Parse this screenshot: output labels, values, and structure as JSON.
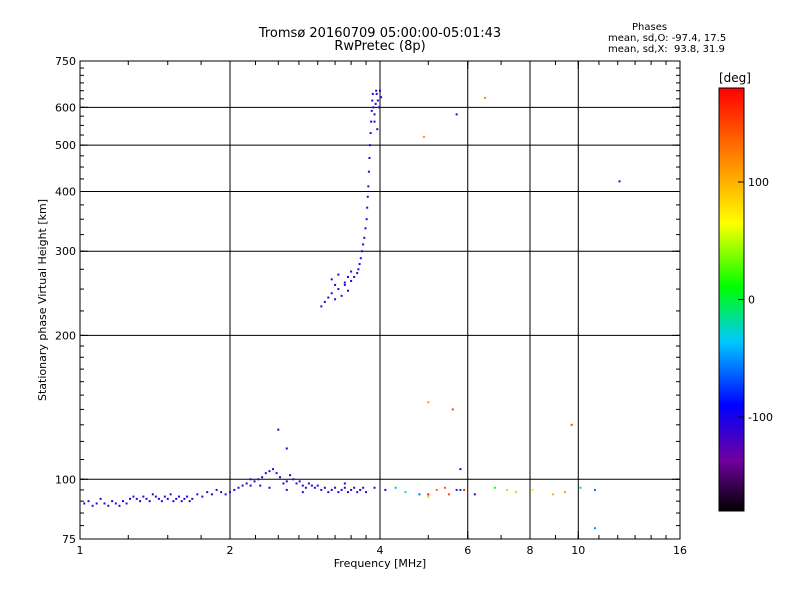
{
  "title": {
    "line1": "Tromsø 20160709 05:00:00-05:01:43",
    "line2": "RwPretec (8p)"
  },
  "phases": {
    "heading": "Phases",
    "line_o": "mean, sd,O: -97.4, 17.5",
    "line_x": "mean, sd,X:  93.8, 31.9"
  },
  "chart_data": {
    "type": "scatter",
    "xlabel": "Frequency [MHz]",
    "ylabel": "Stationary phase Virtual Height [km]",
    "xscale": "log2",
    "yscale": "log",
    "xlim": [
      1,
      16
    ],
    "ylim": [
      75,
      750
    ],
    "x_ticks": [
      1,
      2,
      4,
      6,
      8,
      10,
      16
    ],
    "y_ticks": [
      75,
      100,
      200,
      300,
      400,
      500,
      600,
      750
    ],
    "x_grid": [
      2,
      4,
      6,
      8,
      10
    ],
    "y_grid": [
      100,
      200,
      300,
      400,
      500,
      600
    ],
    "colorbar": {
      "label": "[deg]",
      "ticks": [
        100,
        0,
        -100
      ],
      "range": [
        -180,
        180
      ],
      "colormap": "rainbow"
    },
    "series": [
      {
        "points": [
          [
            1.02,
            89,
            -110
          ],
          [
            1.04,
            90,
            -105
          ],
          [
            1.06,
            88,
            -115
          ],
          [
            1.08,
            89,
            -108
          ],
          [
            1.1,
            91,
            -112
          ],
          [
            1.12,
            89,
            -110
          ],
          [
            1.14,
            88,
            -118
          ],
          [
            1.16,
            90,
            -104
          ],
          [
            1.18,
            89,
            -110
          ],
          [
            1.2,
            88,
            -112
          ],
          [
            1.22,
            90,
            -106
          ],
          [
            1.24,
            89,
            -111
          ],
          [
            1.26,
            91,
            -109
          ],
          [
            1.28,
            92,
            -113
          ],
          [
            1.3,
            91,
            -108
          ],
          [
            1.32,
            90,
            -112
          ],
          [
            1.34,
            92,
            -110
          ],
          [
            1.36,
            91,
            -106
          ],
          [
            1.38,
            90,
            -114
          ],
          [
            1.4,
            93,
            -108
          ],
          [
            1.42,
            92,
            -111
          ],
          [
            1.44,
            91,
            -107
          ],
          [
            1.46,
            90,
            -113
          ],
          [
            1.48,
            92,
            -110
          ],
          [
            1.5,
            91,
            -108
          ],
          [
            1.52,
            93,
            -112
          ],
          [
            1.54,
            90,
            -109
          ],
          [
            1.56,
            91,
            -111
          ],
          [
            1.58,
            92,
            -105
          ],
          [
            1.6,
            90,
            -110
          ],
          [
            1.62,
            91,
            -113
          ],
          [
            1.64,
            92,
            -108
          ],
          [
            1.66,
            90,
            -110
          ],
          [
            1.68,
            91,
            -112
          ],
          [
            1.72,
            93,
            -106
          ],
          [
            1.76,
            92,
            -110
          ],
          [
            1.8,
            94,
            -108
          ],
          [
            1.84,
            93,
            -112
          ],
          [
            1.88,
            95,
            -109
          ],
          [
            1.92,
            94,
            -111
          ],
          [
            1.96,
            93,
            -107
          ],
          [
            2.0,
            94,
            -110
          ],
          [
            2.04,
            95,
            -112
          ],
          [
            2.08,
            96,
            -108
          ],
          [
            2.12,
            97,
            -110
          ],
          [
            2.16,
            98,
            -106
          ],
          [
            2.2,
            97,
            -111
          ],
          [
            2.24,
            99,
            -108
          ],
          [
            2.28,
            100,
            -112
          ],
          [
            2.32,
            101,
            -105
          ],
          [
            2.36,
            103,
            -109
          ],
          [
            2.4,
            104,
            -110
          ],
          [
            2.44,
            105,
            -112
          ],
          [
            2.48,
            103,
            -107
          ],
          [
            2.52,
            101,
            -110
          ],
          [
            2.56,
            98,
            -113
          ],
          [
            2.6,
            99,
            -108
          ],
          [
            2.64,
            102,
            -110
          ],
          [
            2.68,
            100,
            -106
          ],
          [
            2.72,
            98,
            -111
          ],
          [
            2.76,
            99,
            -109
          ],
          [
            2.8,
            97,
            -112
          ],
          [
            2.84,
            96,
            -108
          ],
          [
            2.88,
            98,
            -110
          ],
          [
            2.92,
            97,
            -105
          ],
          [
            2.96,
            96,
            -111
          ],
          [
            3.0,
            97,
            -108
          ],
          [
            3.05,
            95,
            -112
          ],
          [
            3.1,
            96,
            -110
          ],
          [
            3.15,
            94,
            -106
          ],
          [
            3.2,
            95,
            -110
          ],
          [
            3.25,
            96,
            -112
          ],
          [
            3.3,
            94,
            -108
          ],
          [
            3.35,
            95,
            -110
          ],
          [
            3.4,
            96,
            -111
          ],
          [
            3.45,
            94,
            -107
          ],
          [
            3.5,
            95,
            -110
          ],
          [
            3.55,
            96,
            -112
          ],
          [
            3.6,
            94,
            -108
          ],
          [
            3.65,
            95,
            -109
          ],
          [
            3.7,
            96,
            -111
          ],
          [
            3.75,
            94,
            -110
          ],
          [
            2.4,
            96,
            -112
          ],
          [
            2.6,
            95,
            -108
          ],
          [
            2.8,
            94,
            -110
          ],
          [
            2.5,
            127,
            -105
          ],
          [
            2.6,
            116,
            -95
          ],
          [
            2.2,
            100,
            -110
          ],
          [
            2.3,
            97,
            -108
          ],
          [
            3.4,
            98,
            -100
          ],
          [
            3.9,
            96,
            -112
          ],
          [
            4.1,
            95,
            -110
          ],
          [
            4.3,
            96,
            -40
          ],
          [
            4.5,
            94,
            -20
          ],
          [
            4.8,
            93,
            -60
          ],
          [
            5.0,
            92,
            40
          ],
          [
            5.2,
            95,
            130
          ],
          [
            5.5,
            93,
            150
          ],
          [
            5.8,
            95,
            -80
          ],
          [
            5.9,
            95,
            160
          ],
          [
            6.2,
            93,
            -110
          ],
          [
            6.8,
            96,
            10
          ],
          [
            7.2,
            95,
            40
          ],
          [
            7.5,
            94,
            90
          ],
          [
            8.1,
            95,
            70
          ],
          [
            8.9,
            93,
            100
          ],
          [
            9.4,
            94,
            110
          ],
          [
            10.1,
            96,
            -20
          ],
          [
            10.8,
            95,
            -60
          ],
          [
            10.8,
            79,
            -50
          ],
          [
            5.0,
            145,
            110
          ],
          [
            5.0,
            93,
            170
          ],
          [
            5.6,
            140,
            150
          ],
          [
            5.4,
            96,
            140
          ],
          [
            6.5,
            628,
            120
          ],
          [
            5.7,
            580,
            -110
          ],
          [
            4.9,
            520,
            110
          ],
          [
            12.1,
            420,
            -110
          ],
          [
            9.7,
            130,
            150
          ],
          [
            5.8,
            105,
            -100
          ],
          [
            5.7,
            95,
            -120
          ],
          [
            3.05,
            230,
            -110
          ],
          [
            3.1,
            235,
            -112
          ],
          [
            3.15,
            240,
            -108
          ],
          [
            3.2,
            245,
            -110
          ],
          [
            3.25,
            238,
            -111
          ],
          [
            3.3,
            250,
            -109
          ],
          [
            3.35,
            242,
            -112
          ],
          [
            3.4,
            255,
            -108
          ],
          [
            3.45,
            248,
            -110
          ],
          [
            3.5,
            260,
            -106
          ],
          [
            3.55,
            265,
            -111
          ],
          [
            3.6,
            270,
            -109
          ],
          [
            3.62,
            275,
            -112
          ],
          [
            3.64,
            282,
            -108
          ],
          [
            3.66,
            290,
            -110
          ],
          [
            3.68,
            300,
            -106
          ],
          [
            3.7,
            310,
            -111
          ],
          [
            3.72,
            320,
            -109
          ],
          [
            3.74,
            335,
            -112
          ],
          [
            3.76,
            350,
            -108
          ],
          [
            3.77,
            370,
            -110
          ],
          [
            3.78,
            390,
            -106
          ],
          [
            3.79,
            410,
            -111
          ],
          [
            3.8,
            440,
            -109
          ],
          [
            3.81,
            470,
            -112
          ],
          [
            3.82,
            500,
            -108
          ],
          [
            3.83,
            530,
            -110
          ],
          [
            3.84,
            560,
            -106
          ],
          [
            3.85,
            590,
            -111
          ],
          [
            3.86,
            620,
            -109
          ],
          [
            3.87,
            640,
            -112
          ],
          [
            3.88,
            600,
            -108
          ],
          [
            3.9,
            580,
            -110
          ],
          [
            3.92,
            610,
            -106
          ],
          [
            3.94,
            640,
            -111
          ],
          [
            3.96,
            620,
            -109
          ],
          [
            3.98,
            600,
            -112
          ],
          [
            4.0,
            650,
            -108
          ],
          [
            3.9,
            560,
            -110
          ],
          [
            3.95,
            540,
            -106
          ],
          [
            4.02,
            630,
            -111
          ],
          [
            3.93,
            650,
            -109
          ],
          [
            3.2,
            262,
            -110
          ],
          [
            3.3,
            268,
            -112
          ],
          [
            3.4,
            258,
            -108
          ],
          [
            3.5,
            272,
            -110
          ],
          [
            3.25,
            255,
            -112
          ],
          [
            3.45,
            265,
            -107
          ]
        ]
      }
    ]
  }
}
